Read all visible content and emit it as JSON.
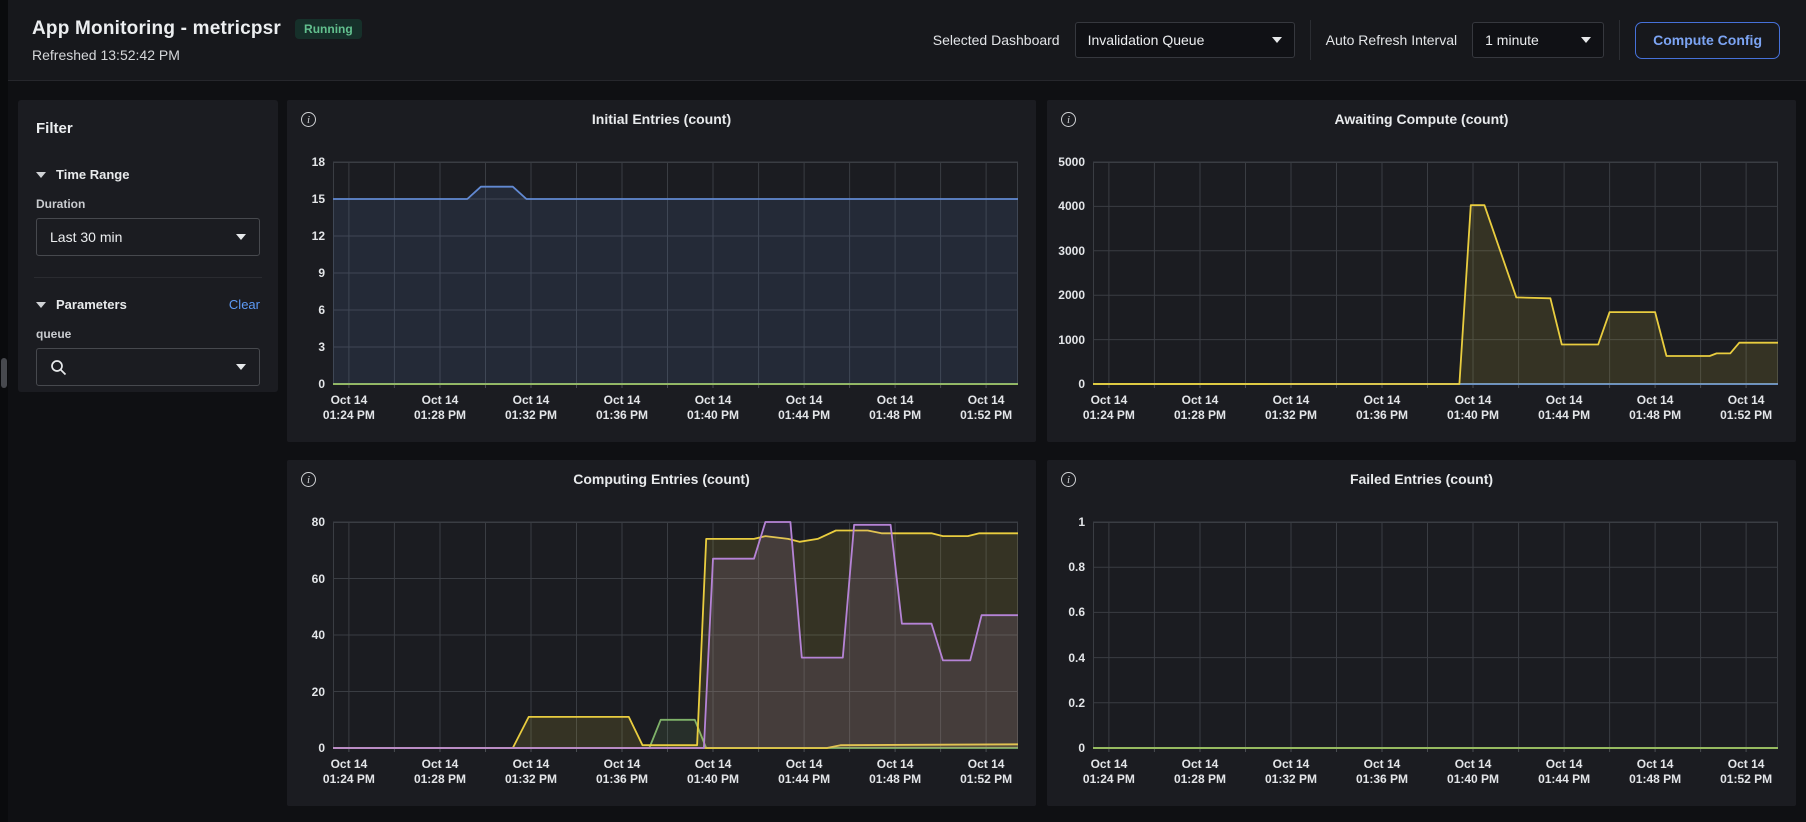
{
  "header": {
    "title": "App Monitoring - metricpsr",
    "status_badge": "Running",
    "refreshed": "Refreshed 13:52:42 PM",
    "selected_dashboard_label": "Selected Dashboard",
    "selected_dashboard_value": "Invalidation Queue",
    "auto_refresh_label": "Auto Refresh Interval",
    "auto_refresh_value": "1 minute",
    "compute_config_label": "Compute Config",
    "accent_blue": "#7ca4f3",
    "badge_green": "#62c08e"
  },
  "sidebar": {
    "title": "Filter",
    "time_range_label": "Time Range",
    "duration_label": "Duration",
    "duration_value": "Last 30 min",
    "parameters_label": "Parameters",
    "clear_label": "Clear",
    "queue_label": "queue",
    "queue_value": ""
  },
  "chart_data": {
    "type": "line",
    "x_axis": {
      "unit": "minutes-after-13:00",
      "xlim_minutes": [
        23.3,
        53.4
      ],
      "grid_start": 24,
      "grid_step_minutes": 2,
      "tick_minutes": [
        24,
        28,
        32,
        36,
        40,
        44,
        48,
        52
      ],
      "tick_labels": [
        [
          "Oct 14",
          "01:24 PM"
        ],
        [
          "Oct 14",
          "01:28 PM"
        ],
        [
          "Oct 14",
          "01:32 PM"
        ],
        [
          "Oct 14",
          "01:36 PM"
        ],
        [
          "Oct 14",
          "01:40 PM"
        ],
        [
          "Oct 14",
          "01:44 PM"
        ],
        [
          "Oct 14",
          "01:48 PM"
        ],
        [
          "Oct 14",
          "01:52 PM"
        ]
      ],
      "grid_color": "#3a3d43",
      "tick_color": "#4a4d52"
    },
    "panels": [
      {
        "title": "Initial Entries (count)",
        "ylim": [
          0,
          18
        ],
        "yticks": [
          {
            "v": 0,
            "label": "0"
          },
          {
            "v": 3,
            "label": "3"
          },
          {
            "v": 6,
            "label": "6"
          },
          {
            "v": 9,
            "label": "9"
          },
          {
            "v": 12,
            "label": "12"
          },
          {
            "v": 15,
            "label": "15"
          },
          {
            "v": 18,
            "label": "18"
          }
        ],
        "series": [
          {
            "name": "zero-baseline-green",
            "color": "#96ba60",
            "width": 2,
            "points": [
              [
                23.3,
                0
              ],
              [
                53.4,
                0
              ]
            ]
          },
          {
            "name": "initial-entries-blue",
            "color": "#6289d2",
            "width": 1.8,
            "points": [
              [
                23.3,
                15
              ],
              [
                29.2,
                15
              ],
              [
                29.8,
                16
              ],
              [
                31.2,
                16
              ],
              [
                31.8,
                15
              ],
              [
                53.4,
                15
              ]
            ]
          }
        ]
      },
      {
        "title": "Awaiting Compute (count)",
        "ylim": [
          0,
          5000
        ],
        "yticks": [
          {
            "v": 0,
            "label": "0"
          },
          {
            "v": 1000,
            "label": "1000"
          },
          {
            "v": 2000,
            "label": "2000"
          },
          {
            "v": 3000,
            "label": "3000"
          },
          {
            "v": 4000,
            "label": "4000"
          },
          {
            "v": 5000,
            "label": "5000"
          }
        ],
        "series": [
          {
            "name": "zero-baseline-green",
            "color": "#96ba60",
            "width": 2,
            "points": [
              [
                23.3,
                0
              ],
              [
                53.4,
                0
              ]
            ]
          },
          {
            "name": "zero-baseline-blue",
            "color": "#6289d2",
            "width": 1.8,
            "points": [
              [
                31,
                0
              ],
              [
                53.4,
                0
              ]
            ]
          },
          {
            "name": "awaiting-compute-yellow",
            "color": "#e9cd3f",
            "width": 1.8,
            "points": [
              [
                23.3,
                0
              ],
              [
                39.4,
                0
              ],
              [
                39.9,
                4030
              ],
              [
                40.5,
                4030
              ],
              [
                41.9,
                1950
              ],
              [
                43.4,
                1930
              ],
              [
                43.9,
                890
              ],
              [
                45.5,
                890
              ],
              [
                46.0,
                1620
              ],
              [
                48.0,
                1620
              ],
              [
                48.5,
                630
              ],
              [
                50.4,
                630
              ],
              [
                50.7,
                690
              ],
              [
                51.3,
                690
              ],
              [
                51.7,
                930
              ],
              [
                53.4,
                930
              ]
            ]
          }
        ]
      },
      {
        "title": "Computing Entries (count)",
        "ylim": [
          0,
          80
        ],
        "yticks": [
          {
            "v": 0,
            "label": "0"
          },
          {
            "v": 20,
            "label": "20"
          },
          {
            "v": 40,
            "label": "40"
          },
          {
            "v": 60,
            "label": "60"
          },
          {
            "v": 80,
            "label": "80"
          }
        ],
        "series": [
          {
            "name": "computing-green",
            "color": "#7fb269",
            "width": 1.8,
            "points": [
              [
                23.3,
                0
              ],
              [
                37.2,
                0
              ],
              [
                37.7,
                10
              ],
              [
                39.2,
                10
              ],
              [
                39.7,
                0
              ],
              [
                53.4,
                0
              ]
            ]
          },
          {
            "name": "computing-yellow-low",
            "color": "#e9cd3f",
            "width": 1.8,
            "points": [
              [
                23.3,
                0
              ],
              [
                45.0,
                0
              ],
              [
                45.6,
                1
              ],
              [
                53.4,
                1.3
              ]
            ]
          },
          {
            "name": "computing-yellow",
            "color": "#e9cd3f",
            "width": 1.8,
            "points": [
              [
                23.3,
                0
              ],
              [
                31.2,
                0
              ],
              [
                31.9,
                11
              ],
              [
                36.3,
                11
              ],
              [
                36.9,
                1
              ],
              [
                39.3,
                1
              ],
              [
                39.7,
                74
              ],
              [
                41.8,
                74
              ],
              [
                42.3,
                75
              ],
              [
                43.3,
                74
              ],
              [
                43.8,
                73
              ],
              [
                44.6,
                74
              ],
              [
                45.4,
                77
              ],
              [
                46.8,
                77
              ],
              [
                47.4,
                76
              ],
              [
                49.6,
                76
              ],
              [
                50.1,
                75
              ],
              [
                51.2,
                75
              ],
              [
                51.7,
                76
              ],
              [
                53.4,
                76
              ]
            ]
          },
          {
            "name": "computing-purple",
            "color": "#b583d6",
            "width": 1.8,
            "points": [
              [
                23.3,
                0
              ],
              [
                39.6,
                0
              ],
              [
                40.0,
                67
              ],
              [
                41.8,
                67
              ],
              [
                42.3,
                80
              ],
              [
                43.4,
                80
              ],
              [
                43.9,
                32
              ],
              [
                45.7,
                32
              ],
              [
                46.2,
                79
              ],
              [
                47.8,
                79
              ],
              [
                48.3,
                44
              ],
              [
                49.6,
                44
              ],
              [
                50.1,
                31
              ],
              [
                51.3,
                31
              ],
              [
                51.8,
                47
              ],
              [
                53.4,
                47
              ]
            ]
          }
        ]
      },
      {
        "title": "Failed Entries (count)",
        "ylim": [
          0,
          1
        ],
        "yticks": [
          {
            "v": 0,
            "label": "0"
          },
          {
            "v": 0.2,
            "label": "0.2"
          },
          {
            "v": 0.4,
            "label": "0.4"
          },
          {
            "v": 0.6,
            "label": "0.6"
          },
          {
            "v": 0.8,
            "label": "0.8"
          },
          {
            "v": 1,
            "label": "1"
          }
        ],
        "series": [
          {
            "name": "failed-green",
            "color": "#96ba60",
            "width": 2,
            "points": [
              [
                23.3,
                0
              ],
              [
                53.4,
                0
              ]
            ]
          }
        ]
      }
    ]
  }
}
